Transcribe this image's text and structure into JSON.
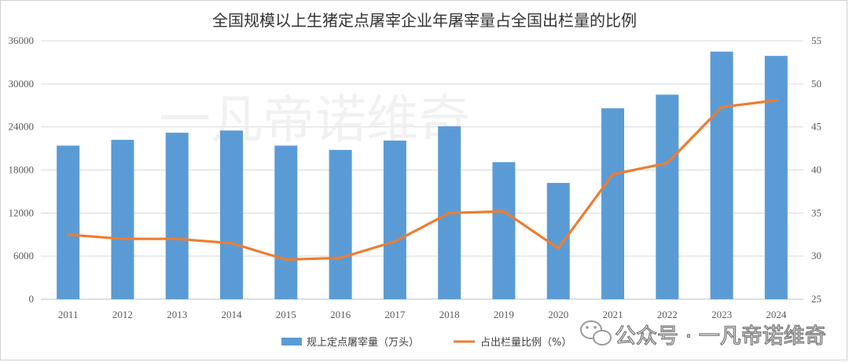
{
  "chart_data": {
    "type": "bar",
    "title": "全国规模以上生猪定点屠宰企业年屠宰量占全国出栏量的比例",
    "categories": [
      "2011",
      "2012",
      "2013",
      "2014",
      "2015",
      "2016",
      "2017",
      "2018",
      "2019",
      "2020",
      "2021",
      "2022",
      "2023",
      "2024"
    ],
    "series": [
      {
        "name": "规上定点屠宰量（万头）",
        "type": "bar",
        "axis": "left",
        "color": "#5B9BD5",
        "values": [
          21400,
          22200,
          23200,
          23500,
          21400,
          20800,
          22100,
          24100,
          19100,
          16200,
          26600,
          28500,
          34500,
          33900
        ]
      },
      {
        "name": "占出栏量比例（%）",
        "type": "line",
        "axis": "right",
        "color": "#ED7D31",
        "values": [
          32.5,
          32.0,
          32.0,
          31.5,
          29.6,
          29.8,
          31.7,
          35.0,
          35.2,
          30.9,
          39.5,
          40.8,
          47.3,
          48.1
        ]
      }
    ],
    "y_left": {
      "min": 0,
      "max": 36000,
      "ticks": [
        "0",
        "6000",
        "12000",
        "18000",
        "24000",
        "30000",
        "36000"
      ]
    },
    "y_right": {
      "min": 25,
      "max": 55,
      "ticks": [
        "25",
        "30",
        "35",
        "40",
        "45",
        "50",
        "55"
      ]
    },
    "grid": true,
    "legend_position": "bottom"
  },
  "watermark": {
    "center_text": "一凡帝诺维奇",
    "wechat_icon": "wechat-icon",
    "footer_text": "公众号 · 一凡帝诺维奇"
  }
}
